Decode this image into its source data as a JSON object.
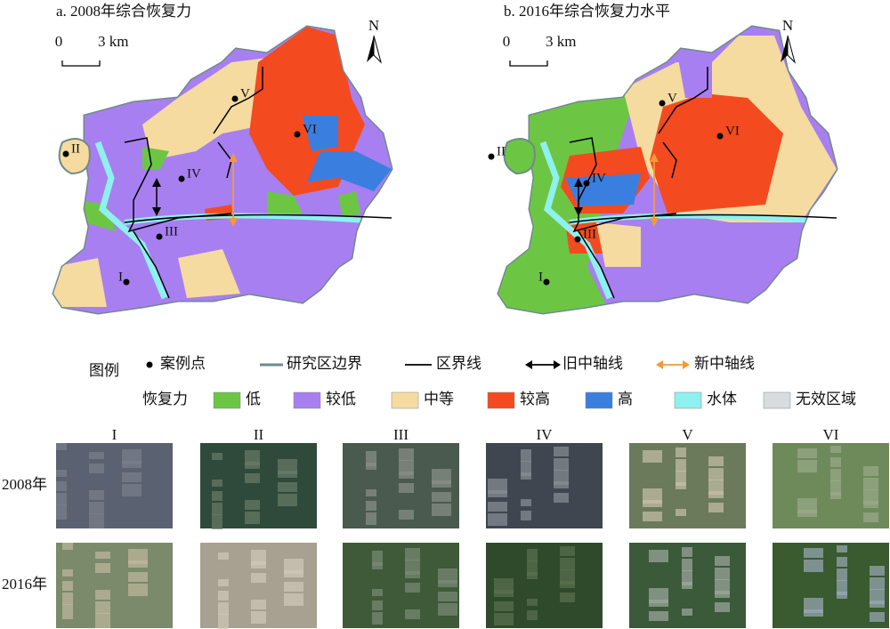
{
  "maps": [
    {
      "title": "a. 2008年综合恢复力",
      "scale": {
        "zero": "0",
        "distance": "3 km"
      },
      "north": "N",
      "sites": [
        "I",
        "II",
        "III",
        "IV",
        "V",
        "VI"
      ]
    },
    {
      "title": "b. 2016年综合恢复力水平",
      "scale": {
        "zero": "0",
        "distance": "3 km"
      },
      "north": "N",
      "sites": [
        "I",
        "II",
        "III",
        "IV",
        "V",
        "VI"
      ]
    }
  ],
  "legend": {
    "title": "图例",
    "symbols": [
      "案例点",
      "研究区边界",
      "区界线",
      "旧中轴线",
      "新中轴线"
    ],
    "resilience_title": "恢复力",
    "classes": [
      {
        "label": "低",
        "color": "#6cc644"
      },
      {
        "label": "较低",
        "color": "#a87ff0"
      },
      {
        "label": "中等",
        "color": "#f5dba0"
      },
      {
        "label": "较高",
        "color": "#f44a1f"
      },
      {
        "label": "高",
        "color": "#3a7fe0"
      },
      {
        "label": "水体",
        "color": "#8ff0f0"
      },
      {
        "label": "无效区域",
        "color": "#d9dcdc"
      }
    ]
  },
  "photos": {
    "columns": [
      "I",
      "II",
      "III",
      "IV",
      "V",
      "VI"
    ],
    "rows": [
      "2008年",
      "2016年"
    ]
  }
}
